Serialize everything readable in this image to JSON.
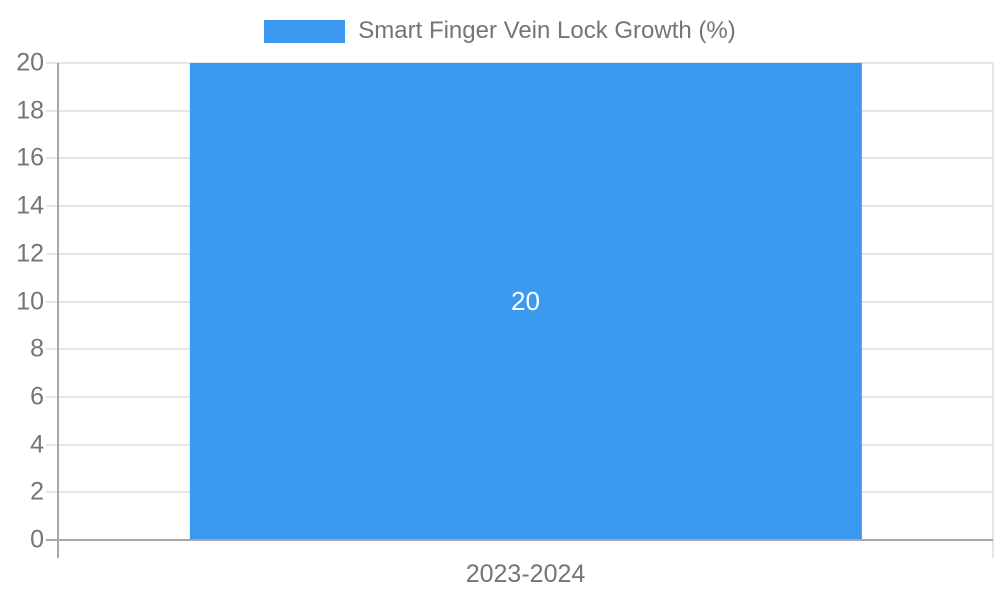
{
  "chart_data": {
    "type": "bar",
    "title": "Smart Finger Vein Lock Growth (%)",
    "legend": {
      "label": "Smart Finger Vein Lock Growth (%)",
      "position": "top-center"
    },
    "categories": [
      "2023-2024"
    ],
    "series": [
      {
        "name": "Smart Finger Vein Lock Growth (%)",
        "values": [
          20
        ]
      }
    ],
    "bar_value_label": "20",
    "ylim": [
      0,
      20
    ],
    "yticks": [
      0,
      2,
      4,
      6,
      8,
      10,
      12,
      14,
      16,
      18,
      20
    ],
    "grid": true,
    "colors": {
      "bar": "#3b99f0",
      "bar_label": "#ffffff",
      "text": "#757575",
      "gridline": "#e6e6e6",
      "axis": "#a8a8a8",
      "background": "#ffffff"
    }
  }
}
